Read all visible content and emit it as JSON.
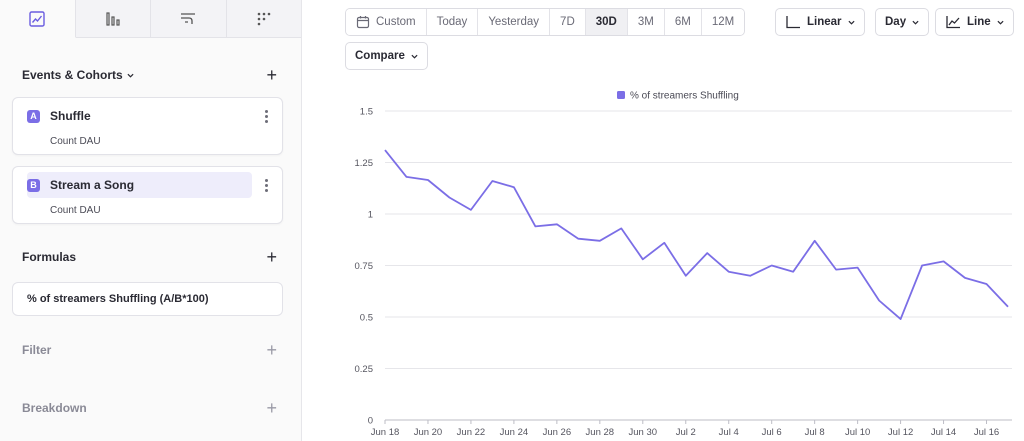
{
  "sidebar": {
    "tabs": [
      {
        "icon": "line-chart-icon",
        "active": true
      },
      {
        "icon": "bar-chart-icon",
        "active": false
      },
      {
        "icon": "flows-icon",
        "active": false
      },
      {
        "icon": "grid-dots-icon",
        "active": false
      }
    ],
    "events_title": "Events & Cohorts",
    "events": [
      {
        "letter": "A",
        "name": "Shuffle",
        "measure": "Count DAU",
        "selected": false
      },
      {
        "letter": "B",
        "name": "Stream a Song",
        "measure": "Count DAU",
        "selected": true
      }
    ],
    "formulas_title": "Formulas",
    "formula": "% of streamers Shuffling (A/B*100)",
    "filter_title": "Filter",
    "breakdown_title": "Breakdown",
    "plus": "+"
  },
  "toolbar": {
    "custom_label": "Custom",
    "ranges": [
      "Today",
      "Yesterday",
      "7D",
      "30D",
      "3M",
      "6M",
      "12M"
    ],
    "active_range": "30D",
    "scale_label": "Linear",
    "interval_label": "Day",
    "chart_type_label": "Line",
    "compare_label": "Compare"
  },
  "colors": {
    "accent": "#7b6ee6",
    "line": "#7b6ee6",
    "grid": "#e6e6ea"
  },
  "chart_data": {
    "type": "line",
    "series": [
      {
        "name": "% of streamers Shuffling",
        "values": [
          1.31,
          1.18,
          1.165,
          1.08,
          1.02,
          1.16,
          1.13,
          0.94,
          0.95,
          0.88,
          0.87,
          0.93,
          0.78,
          0.86,
          0.7,
          0.81,
          0.72,
          0.7,
          0.75,
          0.72,
          0.87,
          0.73,
          0.74,
          0.58,
          0.49,
          0.75,
          0.77,
          0.69,
          0.66,
          0.55
        ]
      }
    ],
    "x_tick_labels": [
      "Jun 18",
      "Jun 20",
      "Jun 22",
      "Jun 24",
      "Jun 26",
      "Jun 28",
      "Jun 30",
      "Jul 2",
      "Jul 4",
      "Jul 6",
      "Jul 8",
      "Jul 10",
      "Jul 12",
      "Jul 14",
      "Jul 16"
    ],
    "y_tick_labels": [
      "0",
      "0.25",
      "0.5",
      "0.75",
      "1",
      "1.25",
      "1.5"
    ],
    "ylim": [
      0,
      1.5
    ],
    "grid": true,
    "legend_position": "top-center"
  }
}
